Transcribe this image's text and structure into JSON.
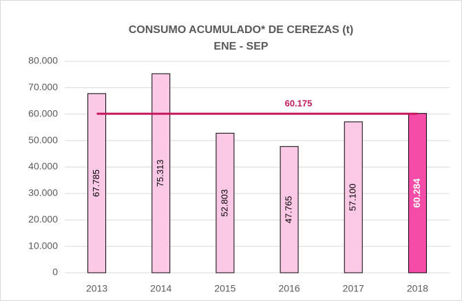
{
  "chart_data": {
    "type": "bar",
    "title": "CONSUMO ACUMULADO* DE CEREZAS (t)",
    "subtitle": "ENE - SEP",
    "categories": [
      "2013",
      "2014",
      "2015",
      "2016",
      "2017",
      "2018"
    ],
    "values": [
      67785,
      75313,
      52803,
      47765,
      57100,
      60284
    ],
    "value_labels": [
      "67.785",
      "75.313",
      "52.803",
      "47.765",
      "57.100",
      "60.284"
    ],
    "colors": [
      "#fbc8e6",
      "#fbc8e6",
      "#fbc8e6",
      "#fbc8e6",
      "#fbc8e6",
      "#f54ca8"
    ],
    "reference_line": {
      "value": 60175,
      "label": "60.175",
      "color": "#c2185b"
    },
    "ylim": [
      0,
      80000
    ],
    "yticks": [
      0,
      {
        "value": 10000,
        "label": "10.000"
      },
      {
        "value": 20000,
        "label": "20.000"
      },
      {
        "value": 30000,
        "label": "30.000"
      },
      {
        "value": 40000,
        "label": "40.000"
      },
      {
        "value": 50000,
        "label": "50.000"
      },
      {
        "value": 60000,
        "label": "60.000"
      },
      {
        "value": 70000,
        "label": "70.000"
      },
      {
        "value": 80000,
        "label": "80.000"
      }
    ],
    "grid": true
  }
}
